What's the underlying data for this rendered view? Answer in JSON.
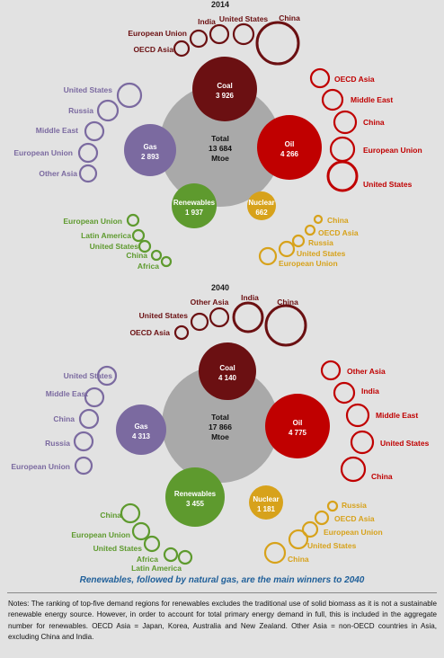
{
  "caption": "Renewables, followed by natural gas, are the main winners to 2040",
  "notes": "Notes: The ranking of top-five demand regions for renewables excludes the traditional use of solid biomass as it is not a sustainable renewable energy source. However, in order to account for total primary energy demand in full, this is included in the aggregate number for renewables. OECD Asia = Japan, Korea, Australia and New Zealand. Other Asia = non-OECD countries in Asia, excluding China and India.",
  "colors": {
    "coal": "#6b1012",
    "oil": "#c00000",
    "gas": "#7b6aa0",
    "renewables": "#5e9a2e",
    "nuclear": "#d7a21b",
    "total": "#a9a9a9"
  },
  "panels": [
    {
      "year": "2014",
      "total": {
        "label": "Total",
        "value": "13 684",
        "unit": "Mtoe"
      },
      "fuels": {
        "coal": {
          "label": "Coal",
          "value": "3 926",
          "regions": [
            "OECD Asia",
            "European Union",
            "India",
            "United States",
            "China"
          ]
        },
        "oil": {
          "label": "Oil",
          "value": "4 266",
          "regions": [
            "OECD Asia",
            "Middle East",
            "China",
            "European Union",
            "United States"
          ]
        },
        "gas": {
          "label": "Gas",
          "value": "2 893",
          "regions": [
            "United States",
            "Russia",
            "Middle East",
            "European Union",
            "Other Asia"
          ]
        },
        "renewables": {
          "label": "Renewables",
          "value": "1 937",
          "regions": [
            "European Union",
            "Latin America",
            "United States",
            "China",
            "Africa"
          ]
        },
        "nuclear": {
          "label": "Nuclear",
          "value": "662",
          "regions": [
            "China",
            "OECD Asia",
            "Russia",
            "United States",
            "European Union"
          ]
        }
      }
    },
    {
      "year": "2040",
      "total": {
        "label": "Total",
        "value": "17 866",
        "unit": "Mtoe"
      },
      "fuels": {
        "coal": {
          "label": "Coal",
          "value": "4 140",
          "regions": [
            "OECD Asia",
            "United States",
            "Other Asia",
            "India",
            "China"
          ]
        },
        "oil": {
          "label": "Oil",
          "value": "4 775",
          "regions": [
            "Other Asia",
            "India",
            "Middle East",
            "United States",
            "China"
          ]
        },
        "gas": {
          "label": "Gas",
          "value": "4 313",
          "regions": [
            "United States",
            "Middle East",
            "China",
            "Russia",
            "European Union"
          ]
        },
        "renewables": {
          "label": "Renewables",
          "value": "3 455",
          "regions": [
            "China",
            "European Union",
            "United States",
            "Africa",
            "Latin America"
          ]
        },
        "nuclear": {
          "label": "Nuclear",
          "value": "1 181",
          "regions": [
            "Russia",
            "OECD Asia",
            "European Union",
            "United States",
            "China"
          ]
        }
      }
    }
  ]
}
